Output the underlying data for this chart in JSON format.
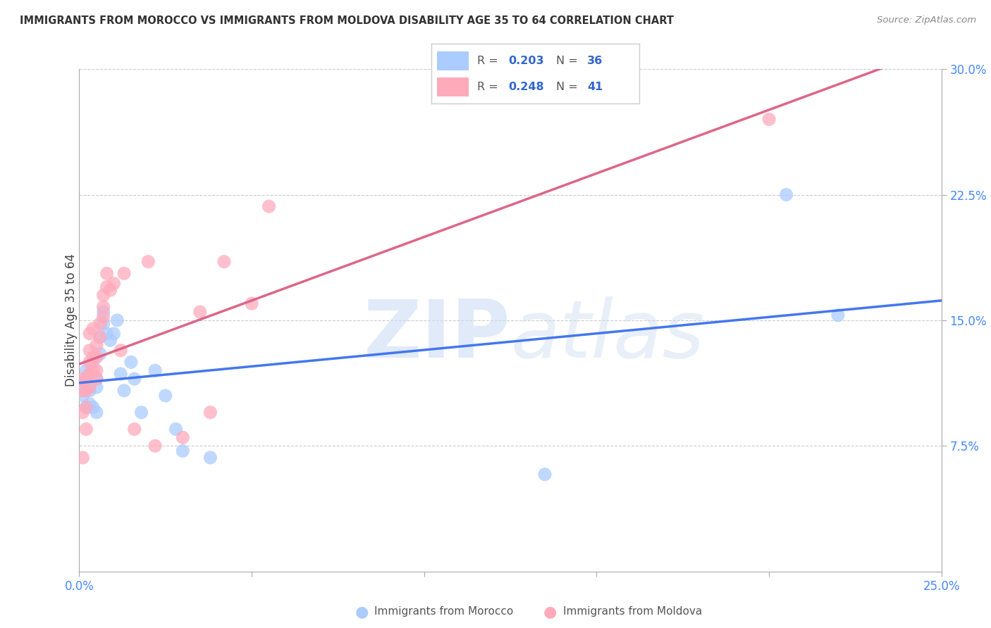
{
  "title": "IMMIGRANTS FROM MOROCCO VS IMMIGRANTS FROM MOLDOVA DISABILITY AGE 35 TO 64 CORRELATION CHART",
  "source": "Source: ZipAtlas.com",
  "ylabel": "Disability Age 35 to 64",
  "xlim": [
    0.0,
    0.25
  ],
  "ylim": [
    0.0,
    0.3
  ],
  "morocco_color": "#aaccff",
  "moldova_color": "#ffaabb",
  "morocco_line_color": "#4477ee",
  "moldova_line_color": "#dd6688",
  "legend_text_color": "#3366cc",
  "morocco_R": "0.203",
  "morocco_N": "36",
  "moldova_R": "0.248",
  "moldova_N": "41",
  "legend_morocco": "Immigrants from Morocco",
  "legend_moldova": "Immigrants from Moldova",
  "morocco_x": [
    0.001,
    0.001,
    0.001,
    0.002,
    0.002,
    0.002,
    0.003,
    0.003,
    0.003,
    0.003,
    0.004,
    0.004,
    0.005,
    0.005,
    0.005,
    0.006,
    0.006,
    0.007,
    0.007,
    0.008,
    0.009,
    0.01,
    0.011,
    0.012,
    0.013,
    0.015,
    0.016,
    0.018,
    0.022,
    0.025,
    0.028,
    0.03,
    0.038,
    0.135,
    0.205,
    0.22
  ],
  "morocco_y": [
    0.11,
    0.108,
    0.105,
    0.12,
    0.115,
    0.098,
    0.118,
    0.112,
    0.108,
    0.1,
    0.125,
    0.098,
    0.115,
    0.11,
    0.095,
    0.13,
    0.14,
    0.148,
    0.155,
    0.142,
    0.138,
    0.142,
    0.15,
    0.118,
    0.108,
    0.125,
    0.115,
    0.095,
    0.12,
    0.105,
    0.085,
    0.072,
    0.068,
    0.058,
    0.225,
    0.153
  ],
  "moldova_x": [
    0.001,
    0.001,
    0.001,
    0.001,
    0.002,
    0.002,
    0.002,
    0.002,
    0.003,
    0.003,
    0.003,
    0.003,
    0.003,
    0.004,
    0.004,
    0.004,
    0.005,
    0.005,
    0.005,
    0.005,
    0.006,
    0.006,
    0.007,
    0.007,
    0.007,
    0.008,
    0.008,
    0.009,
    0.01,
    0.012,
    0.013,
    0.016,
    0.02,
    0.022,
    0.03,
    0.035,
    0.038,
    0.042,
    0.05,
    0.055,
    0.2
  ],
  "moldova_y": [
    0.068,
    0.115,
    0.095,
    0.108,
    0.085,
    0.098,
    0.108,
    0.115,
    0.11,
    0.118,
    0.125,
    0.132,
    0.142,
    0.12,
    0.128,
    0.145,
    0.115,
    0.12,
    0.128,
    0.135,
    0.14,
    0.148,
    0.152,
    0.158,
    0.165,
    0.17,
    0.178,
    0.168,
    0.172,
    0.132,
    0.178,
    0.085,
    0.185,
    0.075,
    0.08,
    0.155,
    0.095,
    0.185,
    0.16,
    0.218,
    0.27
  ]
}
